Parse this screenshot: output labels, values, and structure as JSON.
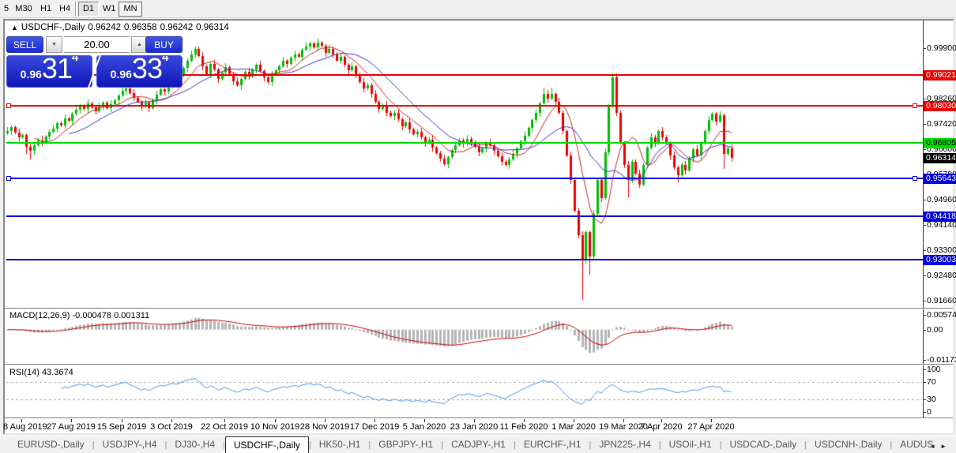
{
  "toolbar": {
    "timeframes": [
      {
        "label": "5",
        "state": "normal"
      },
      {
        "label": "M30",
        "state": "normal"
      },
      {
        "label": "H1",
        "state": "normal"
      },
      {
        "label": "H4",
        "state": "normal"
      },
      {
        "label": "D1",
        "state": "pressed"
      },
      {
        "label": "W1",
        "state": "normal"
      },
      {
        "label": "MN",
        "state": "focused"
      }
    ]
  },
  "header": {
    "collapse_icon": "▲",
    "symbol": "USDCHF-,Daily",
    "open": "0.96242",
    "high": "0.96358",
    "low": "0.96242",
    "close": "0.96314"
  },
  "trade_panel": {
    "sell_label": "SELL",
    "buy_label": "BUY",
    "volume": "20.00",
    "down_glyph": "▼",
    "up_glyph": "▲",
    "sell_price": {
      "base": "0.96",
      "big": "31",
      "sup": "4"
    },
    "buy_price": {
      "base": "0.96",
      "big": "33",
      "sup": "4"
    }
  },
  "macd_panel": {
    "title": "MACD(12,26,9)",
    "values_text": "-0.000478 0.001311",
    "axis_labels": [
      "0.005744",
      "0.00",
      "-0.011738"
    ]
  },
  "rsi_panel": {
    "title": "RSI(14)",
    "value_text": "43.3674",
    "axis_labels": [
      "100",
      "70",
      "30",
      "0"
    ]
  },
  "bid_badge": {
    "text": "0.96314",
    "bg": "#000000",
    "fg": "#ffffff"
  },
  "tabs": {
    "items": [
      "EURUSD-,Daily",
      "USDJPY-,H4",
      "DJ30-,H4",
      "USDCHF-,Daily",
      "HK50-,H1",
      "GBPJPY-,H1",
      "CADJPY-,H1",
      "EURCHF-,H1",
      "JPN225-,H4",
      "USOil-,H1",
      "USDCAD-,Daily",
      "USDCNH-,Daily",
      "AUDUS"
    ],
    "active_index": 3,
    "scroll_left": "◄",
    "scroll_right": "►"
  },
  "chart_data": {
    "type": "candlestick",
    "symbol": "USDCHF-",
    "timeframe": "Daily",
    "current": {
      "open": 0.96242,
      "high": 0.96358,
      "low": 0.96242,
      "close": 0.96314,
      "bid": 0.96314
    },
    "colors": {
      "up": "#00be00",
      "down": "#f20000",
      "ma_fast": "#cc2222",
      "ma_slow": "#3333cc",
      "macd_hist": "#b4b4b4",
      "macd_signal": "#cc0000",
      "rsi": "#4296e6",
      "level_dash": "#a8a8a8"
    },
    "y_axis": {
      "ticks": [
        0.999,
        0.9908,
        0.9826,
        0.9742,
        0.966,
        0.9578,
        0.9496,
        0.9414,
        0.933,
        0.9248,
        0.9166
      ]
    },
    "x_axis": {
      "tick_labels": [
        "8 Aug 2019",
        "27 Aug 2019",
        "15 Sep 2019",
        "3 Oct 2019",
        "22 Oct 2019",
        "10 Nov 2019",
        "28 Nov 2019",
        "17 Dec 2019",
        "5 Jan 2020",
        "23 Jan 2020",
        "11 Feb 2020",
        "1 Mar 2020",
        "19 Mar 2020",
        "7 Apr 2020",
        "27 Apr 2020"
      ],
      "tick_indices": [
        4,
        17,
        30,
        43,
        57,
        70,
        83,
        96,
        109,
        122,
        135,
        148,
        161,
        171,
        184
      ]
    },
    "horizontal_lines": [
      {
        "price": 0.99021,
        "label": "0.99021",
        "color": "#e60000",
        "text_color": "#ffffff",
        "selected": false
      },
      {
        "price": 0.9803,
        "label": "0.98030",
        "color": "#e60000",
        "text_color": "#ffffff",
        "selected": true
      },
      {
        "price": 0.96805,
        "label": "0.96805",
        "color": "#00dc00",
        "text_color": "#000000",
        "selected": false
      },
      {
        "price": 0.95643,
        "label": "0.95643",
        "color": "#0000dc",
        "text_color": "#ffffff",
        "selected": true
      },
      {
        "price": 0.94418,
        "label": "0.94418",
        "color": "#0000dc",
        "text_color": "#ffffff",
        "selected": false
      },
      {
        "price": 0.93003,
        "label": "0.93003",
        "color": "#0000dc",
        "text_color": "#ffffff",
        "selected": false
      }
    ],
    "open0": 0.9712,
    "closes": [
      0.972,
      0.9732,
      0.9715,
      0.9698,
      0.9706,
      0.9668,
      0.9655,
      0.9672,
      0.969,
      0.9681,
      0.9702,
      0.9718,
      0.9728,
      0.9745,
      0.9738,
      0.976,
      0.9752,
      0.9775,
      0.979,
      0.9802,
      0.9792,
      0.981,
      0.9798,
      0.9785,
      0.98,
      0.9812,
      0.9795,
      0.9808,
      0.982,
      0.9835,
      0.985,
      0.9858,
      0.9842,
      0.9828,
      0.9815,
      0.98,
      0.9812,
      0.9795,
      0.982,
      0.9838,
      0.9855,
      0.9848,
      0.987,
      0.9885,
      0.9878,
      0.99,
      0.9925,
      0.995,
      0.997,
      0.9988,
      0.9965,
      0.993,
      0.9905,
      0.9938,
      0.992,
      0.989,
      0.991,
      0.9928,
      0.9905,
      0.9882,
      0.9868,
      0.989,
      0.9912,
      0.9898,
      0.992,
      0.9935,
      0.9915,
      0.9895,
      0.9878,
      0.9902,
      0.9918,
      0.993,
      0.9948,
      0.9938,
      0.9958,
      0.997,
      0.9962,
      0.9985,
      0.9995,
      1.0005,
      0.9992,
      1.0008,
      0.9998,
      0.9975,
      0.9988,
      0.997,
      0.995,
      0.9962,
      0.9935,
      0.9918,
      0.993,
      0.9905,
      0.988,
      0.9858,
      0.987,
      0.984,
      0.9815,
      0.9792,
      0.9805,
      0.978,
      0.9768,
      0.978,
      0.9758,
      0.9735,
      0.9748,
      0.9725,
      0.971,
      0.9718,
      0.9698,
      0.968,
      0.9692,
      0.9665,
      0.9648,
      0.963,
      0.9612,
      0.9635,
      0.9658,
      0.9672,
      0.969,
      0.9678,
      0.9695,
      0.9682,
      0.9668,
      0.965,
      0.9662,
      0.968,
      0.9672,
      0.9655,
      0.9638,
      0.962,
      0.9608,
      0.9628,
      0.9645,
      0.9662,
      0.9685,
      0.9705,
      0.973,
      0.9755,
      0.978,
      0.981,
      0.984,
      0.9825,
      0.984,
      0.9815,
      0.978,
      0.972,
      0.964,
      0.956,
      0.946,
      0.938,
      0.93,
      0.939,
      0.931,
      0.945,
      0.956,
      0.95,
      0.965,
      0.98,
      0.9895,
      0.978,
      0.968,
      0.961,
      0.956,
      0.962,
      0.958,
      0.9545,
      0.961,
      0.9665,
      0.97,
      0.968,
      0.972,
      0.97,
      0.968,
      0.964,
      0.96,
      0.9575,
      0.961,
      0.959,
      0.963,
      0.966,
      0.964,
      0.968,
      0.972,
      0.9755,
      0.9775,
      0.975,
      0.977,
      0.9645,
      0.9662,
      0.9631
    ],
    "wick_overrides": {
      "5": {
        "l": 0.9645
      },
      "6": {
        "l": 0.9628
      },
      "49": {
        "h": 0.9996
      },
      "81": {
        "h": 1.0022
      },
      "140": {
        "h": 0.986
      },
      "142": {
        "h": 0.9862
      },
      "150": {
        "l": 0.917
      },
      "152": {
        "l": 0.9252
      },
      "158": {
        "h": 0.9908
      },
      "162": {
        "l": 0.9505
      },
      "175": {
        "l": 0.9552
      },
      "187": {
        "l": 0.9597
      }
    },
    "moving_averages": [
      {
        "period": 8,
        "color": "#cc2222"
      },
      {
        "period": 17,
        "color": "#3333cc"
      }
    ],
    "macd": {
      "params": [
        12,
        26,
        9
      ],
      "current_values": [
        -0.000478,
        0.001311
      ],
      "axis_top": 0.005744,
      "axis_bottom": -0.011738
    },
    "rsi": {
      "period": 14,
      "current_value": 43.3674,
      "levels": [
        70,
        30
      ],
      "range": [
        0,
        100
      ]
    }
  }
}
